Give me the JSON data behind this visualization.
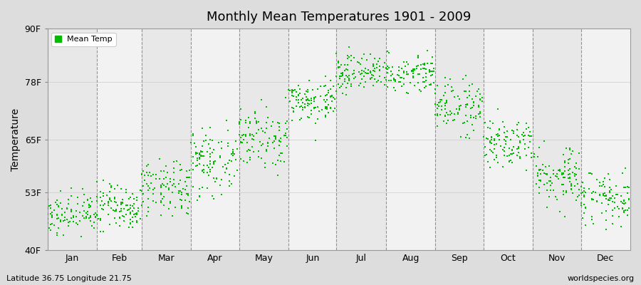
{
  "title": "Monthly Mean Temperatures 1901 - 2009",
  "ylabel": "Temperature",
  "yticks": [
    40,
    53,
    65,
    78,
    90
  ],
  "ytick_labels": [
    "40F",
    "53F",
    "65F",
    "78F",
    "90F"
  ],
  "ylim": [
    40,
    90
  ],
  "months": [
    "Jan",
    "Feb",
    "Mar",
    "Apr",
    "May",
    "Jun",
    "Jul",
    "Aug",
    "Sep",
    "Oct",
    "Nov",
    "Dec"
  ],
  "dot_color": "#00bb00",
  "background_color": "#dddddd",
  "plot_bg_color": "#eeeeee",
  "alt_band_color": "#e6e6e6",
  "footer_left": "Latitude 36.75 Longitude 21.75",
  "footer_right": "worldspecies.org",
  "legend_label": "Mean Temp",
  "n_years": 109,
  "monthly_means": [
    48.5,
    49.5,
    53.5,
    59.5,
    65.5,
    73.5,
    80.0,
    80.0,
    72.5,
    64.0,
    56.5,
    52.0
  ],
  "monthly_stds": [
    2.5,
    2.8,
    3.0,
    3.2,
    3.2,
    2.5,
    2.0,
    2.0,
    2.8,
    3.0,
    3.2,
    2.8
  ],
  "days_per_month": [
    31,
    28,
    31,
    30,
    31,
    30,
    31,
    31,
    30,
    31,
    30,
    31
  ],
  "total_days": 365
}
